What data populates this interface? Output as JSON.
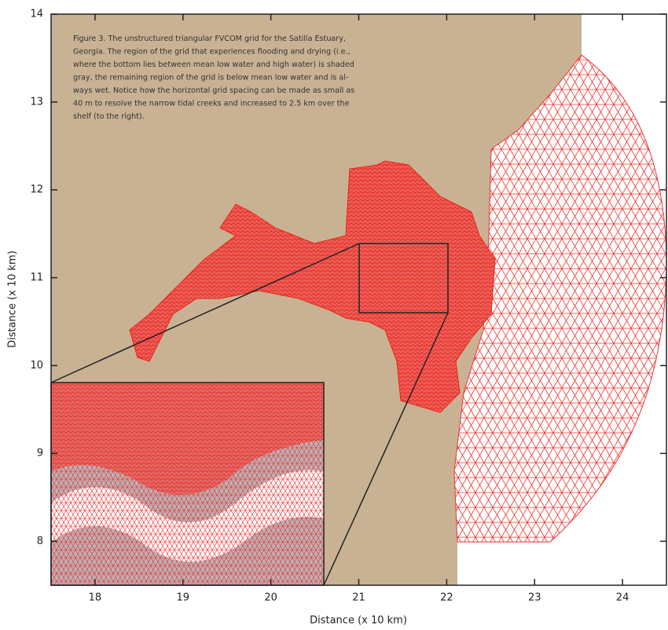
{
  "chart_data": {
    "type": "map",
    "xlabel": "Distance (x 10 km)",
    "ylabel": "Distance (x 10 km)",
    "xlim": [
      17.5,
      24.5
    ],
    "ylim": [
      7.5,
      14
    ],
    "xticks": [
      18,
      19,
      20,
      21,
      22,
      23,
      24
    ],
    "yticks": [
      8,
      9,
      10,
      11,
      12,
      13,
      14
    ],
    "caption": [
      "Figure 3. The unstructured triangular FVCOM grid for the Satilla Estuary,",
      "Georgia. The region of the grid that experiences flooding and drying (i.e.,",
      "where the bottom lies between mean low water and high water) is shaded",
      "gray, the remaining region of the grid is below mean low water and is al-",
      "ways wet. Notice how the horizontal grid spacing can be made as small as",
      "40 m to resolve the narrow tidal creeks and increased to 2.5 km over the",
      "shelf (to the right)."
    ]
  }
}
